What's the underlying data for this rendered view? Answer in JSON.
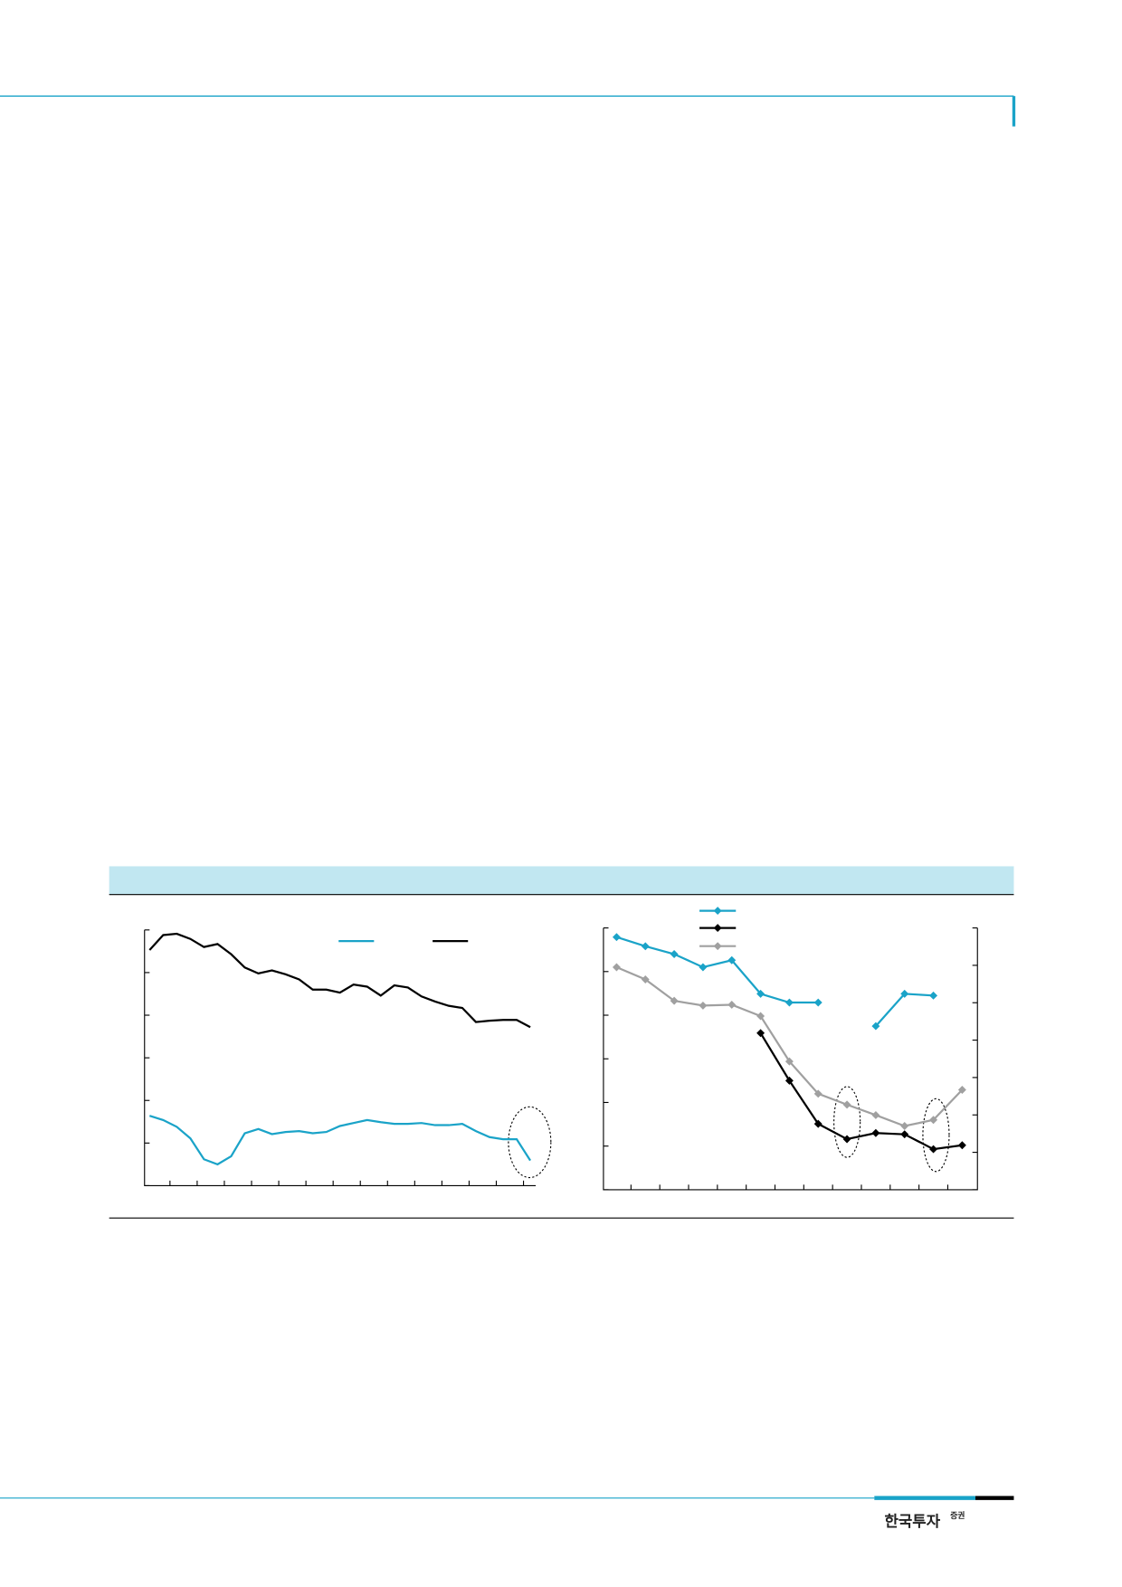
{
  "chart_data": [
    {
      "type": "line",
      "x": [
        0,
        1,
        2,
        3,
        4,
        5,
        6,
        7,
        8,
        9,
        10,
        11,
        12,
        13,
        14,
        15,
        16,
        17,
        18,
        19,
        20,
        21,
        22,
        23,
        24,
        25,
        26,
        27,
        28
      ],
      "xlim": [
        -0.37,
        28.4
      ],
      "xticks": [
        1.5,
        3.5,
        5.5,
        7.5,
        9.5,
        11.5,
        13.5,
        15.5,
        17.5,
        19.5,
        21.5,
        23.5,
        25.5,
        27.5
      ],
      "ylim": [
        0,
        60
      ],
      "yticks": [
        0,
        10,
        20,
        30,
        40,
        50,
        60
      ],
      "markers": false,
      "series": [
        {
          "color": "#1aa3c8",
          "values": [
            16.4,
            15.4,
            13.8,
            11.1,
            6.2,
            5.0,
            6.9,
            12.3,
            13.3,
            12.1,
            12.6,
            12.8,
            12.3,
            12.6,
            14.0,
            14.7,
            15.4,
            14.9,
            14.5,
            14.5,
            14.7,
            14.2,
            14.2,
            14.5,
            12.8,
            11.4,
            10.9,
            10.9,
            5.9
          ]
        },
        {
          "color": "#000000",
          "values": [
            55.3,
            58.8,
            59.1,
            57.9,
            56.0,
            56.7,
            54.3,
            51.2,
            49.8,
            50.5,
            49.6,
            48.4,
            46.0,
            46.0,
            45.3,
            47.2,
            46.7,
            44.6,
            47.0,
            46.5,
            44.4,
            43.2,
            42.2,
            41.7,
            38.4,
            38.7,
            38.9,
            38.9,
            37.2
          ]
        }
      ]
    },
    {
      "type": "line",
      "x": [
        0,
        1,
        2,
        3,
        4,
        5,
        6,
        7,
        8,
        9,
        10,
        11,
        12
      ],
      "xlim": [
        -0.456,
        12.53
      ],
      "xticks": [
        0.5,
        1.5,
        2.5,
        3.5,
        4.5,
        5.5,
        6.5,
        7.5,
        8.5,
        9.5,
        10.5,
        11.5
      ],
      "ylim": [
        0,
        60
      ],
      "yticks": [
        0,
        10,
        20,
        30,
        40,
        50,
        60
      ],
      "y2lim": [
        0,
        70
      ],
      "y2ticks": [
        0,
        10,
        20,
        30,
        40,
        50,
        60,
        70
      ],
      "markers": true,
      "series": [
        {
          "color": "#1aa3c8",
          "values": [
            57.9,
            55.8,
            54.0,
            51.0,
            52.6,
            44.9,
            42.9,
            42.9,
            null,
            37.5,
            44.9,
            44.5,
            null
          ]
        },
        {
          "color": "#000000",
          "values": [
            null,
            null,
            null,
            null,
            null,
            35.9,
            25.0,
            15.1,
            11.6,
            13.0,
            12.7,
            9.3,
            10.2
          ]
        },
        {
          "color": "#a0a0a0",
          "values": [
            51.0,
            48.2,
            43.3,
            42.2,
            42.4,
            39.8,
            29.4,
            22.0,
            19.5,
            17.1,
            14.6,
            16.0,
            22.9
          ]
        }
      ]
    }
  ],
  "footer": {
    "logo": "한국투자",
    "logo_sup": "증권"
  }
}
